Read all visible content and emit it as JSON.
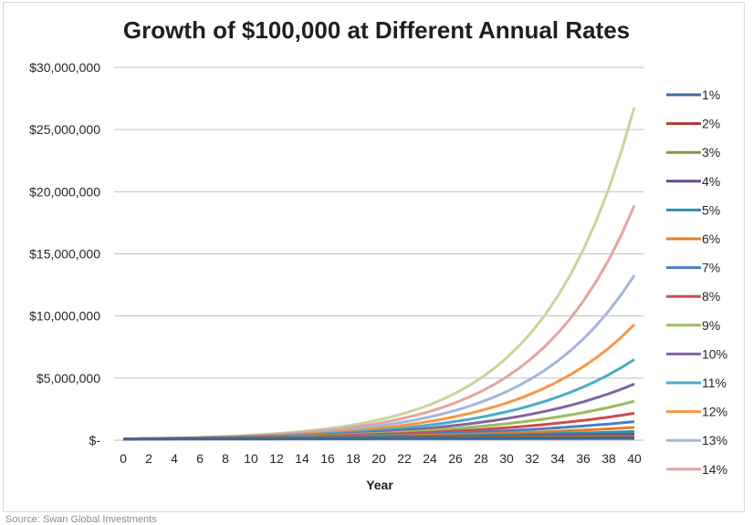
{
  "chart_data": {
    "type": "line",
    "title": "Growth of $100,000 at Different Annual Rates",
    "xlabel": "Year",
    "ylabel": "",
    "principal": 100000,
    "x": [
      0,
      1,
      2,
      3,
      4,
      5,
      6,
      7,
      8,
      9,
      10,
      11,
      12,
      13,
      14,
      15,
      16,
      17,
      18,
      19,
      20,
      21,
      22,
      23,
      24,
      25,
      26,
      27,
      28,
      29,
      30,
      31,
      32,
      33,
      34,
      35,
      36,
      37,
      38,
      39,
      40
    ],
    "xticks": [
      0,
      2,
      4,
      6,
      8,
      10,
      12,
      14,
      16,
      18,
      20,
      22,
      24,
      26,
      28,
      30,
      32,
      34,
      36,
      38,
      40
    ],
    "xlim": [
      0,
      40
    ],
    "ylim": [
      0,
      30000000
    ],
    "yticks": [
      {
        "value": 0,
        "label": "$-"
      },
      {
        "value": 5000000,
        "label": "$5,000,000"
      },
      {
        "value": 10000000,
        "label": "$10,000,000"
      },
      {
        "value": 15000000,
        "label": "$15,000,000"
      },
      {
        "value": 20000000,
        "label": "$20,000,000"
      },
      {
        "value": 25000000,
        "label": "$25,000,000"
      },
      {
        "value": 30000000,
        "label": "$30,000,000"
      }
    ],
    "grid": "horizontal",
    "legend_position": "right",
    "series": [
      {
        "name": "1%",
        "rate": 0.01,
        "color": "#3B6A9A"
      },
      {
        "name": "2%",
        "rate": 0.02,
        "color": "#B03A36"
      },
      {
        "name": "3%",
        "rate": 0.03,
        "color": "#7E9A3A"
      },
      {
        "name": "4%",
        "rate": 0.04,
        "color": "#6A4A8E"
      },
      {
        "name": "5%",
        "rate": 0.05,
        "color": "#2E90A6"
      },
      {
        "name": "6%",
        "rate": 0.06,
        "color": "#E07D2A"
      },
      {
        "name": "7%",
        "rate": 0.07,
        "color": "#4A7EC0"
      },
      {
        "name": "8%",
        "rate": 0.08,
        "color": "#C94D4A"
      },
      {
        "name": "9%",
        "rate": 0.09,
        "color": "#9BBB59"
      },
      {
        "name": "10%",
        "rate": 0.1,
        "color": "#8064A2"
      },
      {
        "name": "11%",
        "rate": 0.11,
        "color": "#4BACC6"
      },
      {
        "name": "12%",
        "rate": 0.12,
        "color": "#F79646"
      },
      {
        "name": "13%",
        "rate": 0.13,
        "color": "#A5B6D8"
      },
      {
        "name": "14%",
        "rate": 0.14,
        "color": "#E6A3A1"
      },
      {
        "name": "",
        "rate": 0.15,
        "color": "#C4D79B"
      }
    ]
  },
  "source": "Source: Swan Global Investments"
}
